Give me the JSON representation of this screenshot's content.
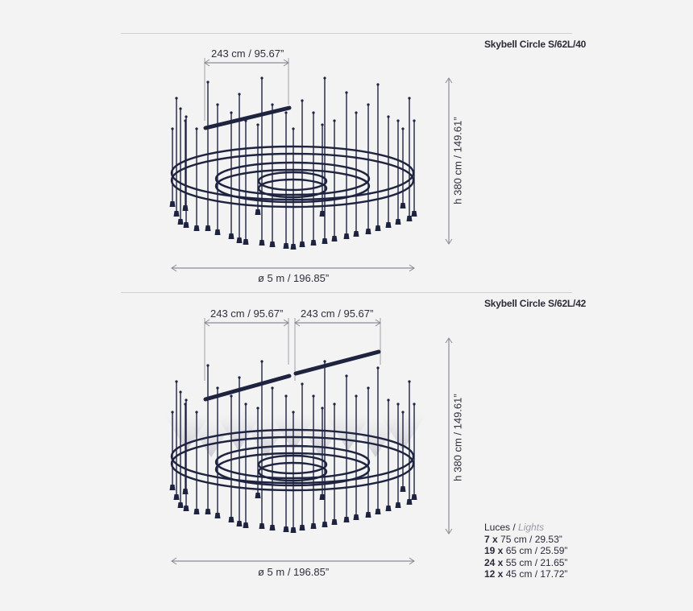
{
  "diagram_top": {
    "model": "Skybell Circle S/62L/40",
    "width_dim": "243 cm / 95.67”",
    "height_dim": "h 380 cm / 149.61”",
    "diameter_dim": "ø 5 m / 196.85”"
  },
  "diagram_bottom": {
    "model": "Skybell Circle S/62L/42",
    "width_dim_1": "243 cm / 95.67”",
    "width_dim_2": "243 cm / 95.67”",
    "height_dim": "h 380 cm / 149.61”",
    "diameter_dim": "ø 5 m / 196.85”"
  },
  "legend": {
    "title_es": "Luces /",
    "title_en": "Lights",
    "rows": [
      {
        "qty": "7 x",
        "size": "75 cm / 29.53”"
      },
      {
        "qty": "19 x",
        "size": "65 cm / 25.59”"
      },
      {
        "qty": "24 x",
        "size": "55 cm / 21.65”"
      },
      {
        "qty": "12 x",
        "size": "45 cm / 17.72”"
      }
    ]
  },
  "colors": {
    "line": "#1e2340",
    "dimension": "#8a8a96",
    "glow": "#c9c9d2"
  }
}
